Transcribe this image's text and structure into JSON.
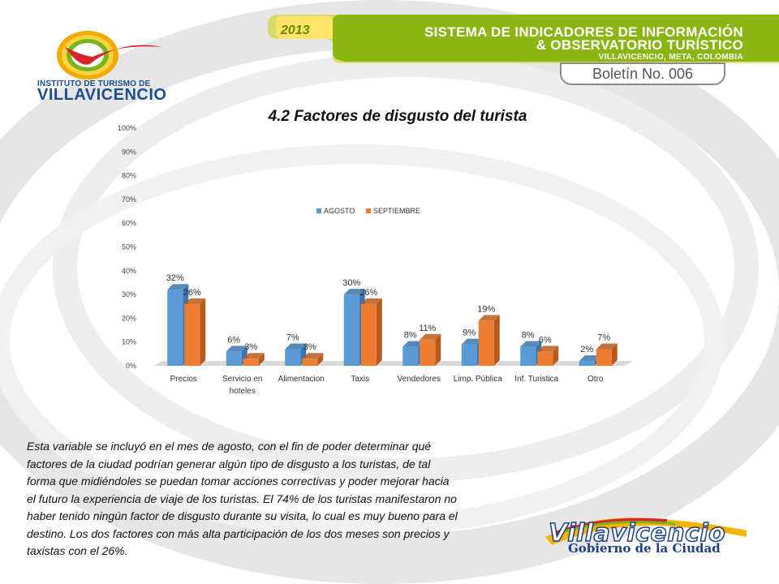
{
  "header": {
    "logo_line1": "INSTITUTO DE TURISMO DE",
    "logo_line2": "VILLAVICENCIO",
    "year": "2013",
    "banner_line1": "SISTEMA DE INDICADORES DE INFORMACIÓN",
    "banner_line2": "& OBSERVATORIO TURÍSTICO",
    "banner_line3": "VILLAVICENCIO, META, COLOMBIA",
    "boletin": "Boletín No. 006"
  },
  "chart_data": {
    "type": "bar",
    "title": "4.2 Factores de disgusto del turista",
    "categories": [
      "Precios",
      "Servicio en hoteles",
      "Alimentacion",
      "Taxis",
      "Vendedores",
      "Limp. Pública",
      "Inf. Turistica",
      "Otro"
    ],
    "category_lines": [
      [
        "Precios"
      ],
      [
        "Servicio en",
        "hoteles"
      ],
      [
        "Alimentacion"
      ],
      [
        "Taxis"
      ],
      [
        "Vendedores"
      ],
      [
        "Limp. Pública"
      ],
      [
        "Inf. Turistica"
      ],
      [
        "Otro"
      ]
    ],
    "series": [
      {
        "name": "AGOSTO",
        "values": [
          32,
          6,
          7,
          30,
          8,
          9,
          8,
          2
        ],
        "labels": [
          "32%",
          "6%",
          "7%",
          "30%",
          "8%",
          "9%",
          "8%",
          "2%"
        ]
      },
      {
        "name": "SEPTIEMBRE",
        "values": [
          26,
          3,
          3,
          26,
          11,
          19,
          6,
          7
        ],
        "labels": [
          "26%",
          "3%",
          "3%",
          "26%",
          "11%",
          "19%",
          "6%",
          "7%"
        ]
      }
    ],
    "y_ticks": [
      "0%",
      "10%",
      "20%",
      "30%",
      "40%",
      "50%",
      "60%",
      "70%",
      "80%",
      "90%",
      "100%"
    ],
    "ylim": [
      0,
      100
    ],
    "legend_position": "center",
    "grid": false,
    "style": "3d",
    "colors": {
      "series1_front": "#5b9bd5",
      "series1_side": "#3a75ad",
      "series2_front": "#ed7d31",
      "series2_side": "#b75a1c"
    }
  },
  "body_lines": [
    "Esta variable se incluyó en el mes de agosto, con el fin de poder determinar qué",
    "factores de la ciudad podrían generar algún tipo de disgusto a los turistas, de tal",
    "forma que midiéndoles se puedan tomar acciones correctivas y poder mejorar hacia",
    "el futuro la experiencia de viaje de los turistas. El 74% de los turistas manifestaron no",
    "haber tenido ningún factor de disgusto durante su visita, lo cual es muy bueno para el",
    "destino. Los dos factores con más alta participación de los dos meses son precios y",
    "taxistas con el 26%."
  ],
  "footer": {
    "city_logo": "Villavicencio",
    "city_sub": "Gobierno de la Ciudad"
  }
}
